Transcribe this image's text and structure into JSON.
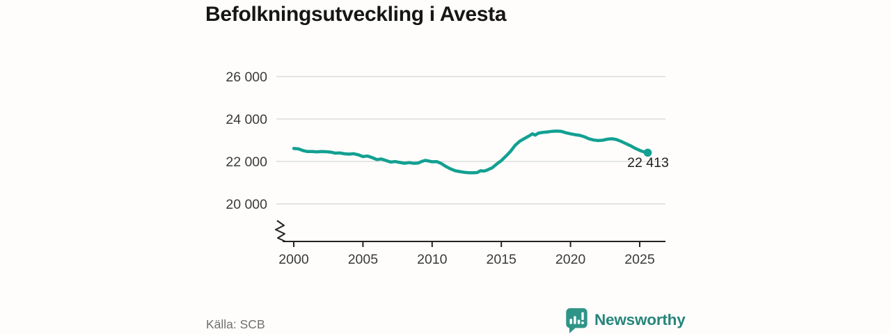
{
  "title": "Befolkningsutveckling i Avesta",
  "source": "Källa: SCB",
  "brand": {
    "name": "Newsworthy",
    "icon": "bar-chart-speech-bubble-icon",
    "icon_color": "#2f9488",
    "text_color": "#27857b"
  },
  "colors": {
    "line": "#13a092",
    "grid": "#dcdcdc",
    "axis": "#222222",
    "tick_text": "#3a3a3a"
  },
  "chart_data": {
    "type": "line",
    "title": "Befolkningsutveckling i Avesta",
    "xlabel": "",
    "ylabel": "",
    "x_ticks": [
      2000,
      2005,
      2010,
      2015,
      2020,
      2025
    ],
    "y_ticks": [
      20000,
      22000,
      24000,
      26000
    ],
    "y_tick_labels": [
      "20 000",
      "22 000",
      "24 000",
      "26 000"
    ],
    "xlim": [
      1999.5,
      2026.8
    ],
    "ylim": [
      19600,
      26500
    ],
    "axis_break_below": 20000,
    "grid": "horizontal",
    "legend": "none",
    "end_point": {
      "x": 2025.58,
      "value": 22413,
      "label": "22 413"
    },
    "series": [
      {
        "name": "Befolkning i Avesta",
        "points": [
          [
            2000.0,
            22610
          ],
          [
            2000.33,
            22595
          ],
          [
            2000.67,
            22510
          ],
          [
            2001.0,
            22465
          ],
          [
            2001.33,
            22470
          ],
          [
            2001.67,
            22450
          ],
          [
            2002.0,
            22470
          ],
          [
            2002.33,
            22460
          ],
          [
            2002.67,
            22440
          ],
          [
            2003.0,
            22390
          ],
          [
            2003.33,
            22400
          ],
          [
            2003.67,
            22360
          ],
          [
            2004.0,
            22345
          ],
          [
            2004.33,
            22365
          ],
          [
            2004.67,
            22310
          ],
          [
            2005.0,
            22230
          ],
          [
            2005.33,
            22255
          ],
          [
            2005.67,
            22180
          ],
          [
            2006.0,
            22090
          ],
          [
            2006.33,
            22115
          ],
          [
            2006.67,
            22040
          ],
          [
            2007.0,
            21970
          ],
          [
            2007.33,
            21995
          ],
          [
            2007.67,
            21950
          ],
          [
            2008.0,
            21915
          ],
          [
            2008.33,
            21945
          ],
          [
            2008.67,
            21910
          ],
          [
            2009.0,
            21925
          ],
          [
            2009.25,
            22000
          ],
          [
            2009.5,
            22050
          ],
          [
            2009.75,
            22020
          ],
          [
            2010.0,
            21985
          ],
          [
            2010.33,
            21995
          ],
          [
            2010.67,
            21900
          ],
          [
            2011.0,
            21760
          ],
          [
            2011.33,
            21650
          ],
          [
            2011.67,
            21560
          ],
          [
            2012.0,
            21520
          ],
          [
            2012.33,
            21490
          ],
          [
            2012.67,
            21470
          ],
          [
            2013.0,
            21465
          ],
          [
            2013.25,
            21475
          ],
          [
            2013.5,
            21560
          ],
          [
            2013.75,
            21545
          ],
          [
            2014.0,
            21600
          ],
          [
            2014.33,
            21700
          ],
          [
            2014.67,
            21880
          ],
          [
            2015.0,
            22040
          ],
          [
            2015.33,
            22250
          ],
          [
            2015.67,
            22480
          ],
          [
            2016.0,
            22760
          ],
          [
            2016.33,
            22950
          ],
          [
            2016.67,
            23080
          ],
          [
            2017.0,
            23200
          ],
          [
            2017.25,
            23300
          ],
          [
            2017.45,
            23240
          ],
          [
            2017.67,
            23330
          ],
          [
            2018.0,
            23370
          ],
          [
            2018.33,
            23390
          ],
          [
            2018.67,
            23420
          ],
          [
            2019.0,
            23430
          ],
          [
            2019.33,
            23415
          ],
          [
            2019.67,
            23350
          ],
          [
            2020.0,
            23300
          ],
          [
            2020.33,
            23260
          ],
          [
            2020.67,
            23230
          ],
          [
            2021.0,
            23160
          ],
          [
            2021.33,
            23070
          ],
          [
            2021.67,
            23010
          ],
          [
            2022.0,
            22985
          ],
          [
            2022.33,
            23000
          ],
          [
            2022.67,
            23050
          ],
          [
            2023.0,
            23070
          ],
          [
            2023.33,
            23030
          ],
          [
            2023.67,
            22940
          ],
          [
            2024.0,
            22840
          ],
          [
            2024.33,
            22740
          ],
          [
            2024.67,
            22620
          ],
          [
            2025.0,
            22520
          ],
          [
            2025.3,
            22450
          ],
          [
            2025.58,
            22413
          ]
        ]
      }
    ]
  }
}
